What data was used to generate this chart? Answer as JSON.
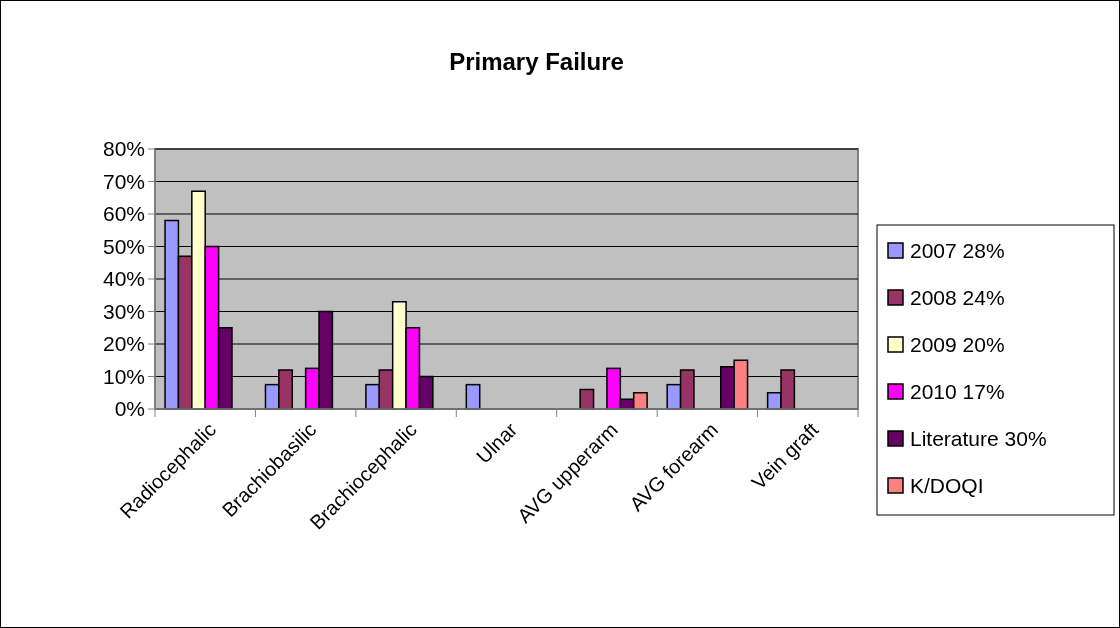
{
  "chart_data": {
    "type": "bar",
    "title": "Primary Failure",
    "categories": [
      "Radiocephalic",
      "Brachiobasilic",
      "Brachiocephalic",
      "Ulnar",
      "AVG upperarm",
      "AVG forearm",
      "Vein graft"
    ],
    "series": [
      {
        "name": "2007 28%",
        "color": "#9999ff",
        "values": [
          58,
          7.5,
          7.5,
          7.5,
          null,
          7.5,
          5
        ]
      },
      {
        "name": "2008 24%",
        "color": "#993366",
        "values": [
          47,
          12,
          12,
          null,
          6,
          12,
          12
        ]
      },
      {
        "name": "2009 20%",
        "color": "#ffffcc",
        "values": [
          67,
          null,
          33,
          null,
          null,
          null,
          null
        ]
      },
      {
        "name": "2010 17%",
        "color": "#ff00ff",
        "values": [
          50,
          12.5,
          25,
          null,
          12.5,
          null,
          null
        ]
      },
      {
        "name": "Literature 30%",
        "color": "#660066",
        "values": [
          25,
          30,
          10,
          null,
          3,
          13,
          null
        ]
      },
      {
        "name": "K/DOQI",
        "color": "#ff8080",
        "values": [
          null,
          null,
          null,
          null,
          5,
          15,
          null
        ]
      }
    ],
    "ylim": [
      0,
      80
    ],
    "yticks": [
      {
        "value": 0,
        "label": "0%"
      },
      {
        "value": 10,
        "label": "10%"
      },
      {
        "value": 20,
        "label": "20%"
      },
      {
        "value": 30,
        "label": "30%"
      },
      {
        "value": 40,
        "label": "40%"
      },
      {
        "value": 50,
        "label": "50%"
      },
      {
        "value": 60,
        "label": "60%"
      },
      {
        "value": 70,
        "label": "70%"
      },
      {
        "value": 80,
        "label": "80%"
      }
    ],
    "grid": "y",
    "legend": "right"
  }
}
